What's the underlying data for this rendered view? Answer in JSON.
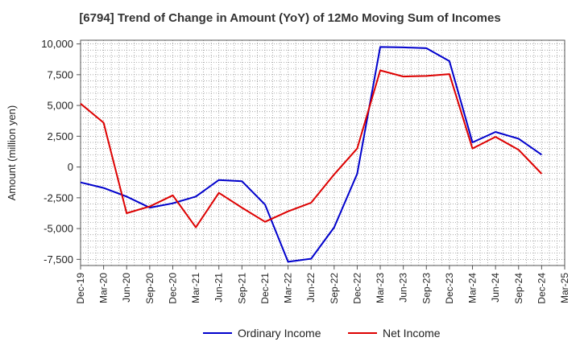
{
  "chart_data": {
    "type": "line",
    "title": "[6794]  Trend of Change in Amount (YoY) of 12Mo Moving Sum of Incomes",
    "ylabel": "Amount (million yen)",
    "xlabel": "",
    "ylim": [
      -8000,
      10300
    ],
    "yticks": [
      10000,
      7500,
      5000,
      2500,
      0,
      -2500,
      -5000,
      -7500
    ],
    "ytick_labels": [
      "10,000",
      "7,500",
      "5,000",
      "2,500",
      "0",
      "-2,500",
      "-5,000",
      "-7,500"
    ],
    "x_tick_labels": [
      "Dec-19",
      "Mar-20",
      "Jun-20",
      "Sep-20",
      "Dec-20",
      "Mar-21",
      "Jun-21",
      "Sep-21",
      "Dec-21",
      "Mar-22",
      "Jun-22",
      "Sep-22",
      "Dec-22",
      "Mar-23",
      "Jun-23",
      "Sep-23",
      "Dec-23",
      "Mar-24",
      "Jun-24",
      "Sep-24",
      "Dec-24",
      "Mar-25"
    ],
    "grid": true,
    "legend_position": "bottom-center",
    "series": [
      {
        "name": "Ordinary Income",
        "color": "#0000cc",
        "values": [
          -1250,
          -1700,
          -2400,
          -3300,
          -2950,
          -2400,
          -1050,
          -1150,
          -3050,
          -7700,
          -7450,
          -4900,
          -550,
          9750,
          9720,
          9650,
          8600,
          2000,
          2850,
          2300,
          1000
        ]
      },
      {
        "name": "Net Income",
        "color": "#dd0000",
        "values": [
          5150,
          3600,
          -3750,
          -3200,
          -2300,
          -4900,
          -2100,
          -3300,
          -4450,
          -3600,
          -2900,
          -600,
          1500,
          7850,
          7350,
          7400,
          7550,
          1500,
          2450,
          1400,
          -550
        ]
      }
    ]
  }
}
